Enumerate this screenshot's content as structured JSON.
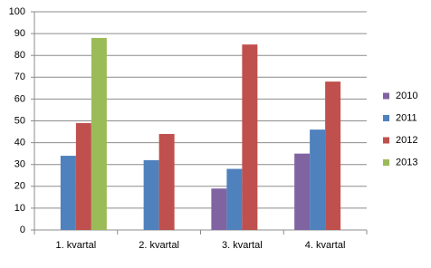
{
  "chart_data": {
    "type": "bar",
    "categories": [
      "1. kvartal",
      "2. kvartal",
      "3. kvartal",
      "4. kvartal"
    ],
    "series": [
      {
        "name": "2010",
        "color": "#8064a2",
        "values": [
          null,
          null,
          19,
          35
        ]
      },
      {
        "name": "2011",
        "color": "#4f81bd",
        "values": [
          34,
          32,
          28,
          46
        ]
      },
      {
        "name": "2012",
        "color": "#c0504d",
        "values": [
          49,
          44,
          85,
          68
        ]
      },
      {
        "name": "2013",
        "color": "#9bbb59",
        "values": [
          88,
          null,
          null,
          null
        ]
      }
    ],
    "ylim": [
      0,
      100
    ],
    "yticks": [
      0,
      10,
      20,
      30,
      40,
      50,
      60,
      70,
      80,
      90,
      100
    ],
    "grid": true,
    "legend": "right"
  }
}
